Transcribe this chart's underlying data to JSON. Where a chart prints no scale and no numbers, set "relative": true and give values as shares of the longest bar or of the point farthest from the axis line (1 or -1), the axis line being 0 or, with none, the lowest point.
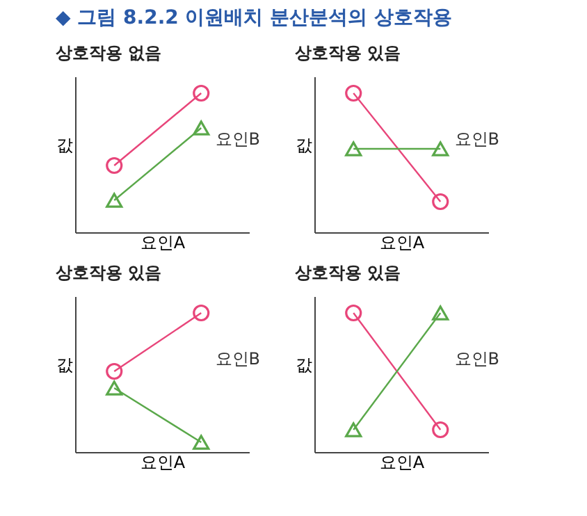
{
  "chart_data": [
    {
      "type": "line",
      "title": "상호작용 없음",
      "annotations": [
        "◆ 그림 8.2.2 이원배치 분산분석의 상호작용"
      ],
      "xlabel": "요인A",
      "ylabel": "값",
      "legend_title": "요인B",
      "relative": true,
      "categories": [
        null,
        null
      ],
      "line_style": "solid",
      "series": [
        {
          "color": "#e8457a",
          "marker": "circle",
          "values": [
            0.48,
            1.0
          ]
        },
        {
          "color": "#5aa84a",
          "marker": "triangle",
          "values": [
            0.23,
            0.75
          ]
        }
      ]
    },
    {
      "type": "line",
      "title": "상호작용 있음",
      "xlabel": "요인A",
      "ylabel": "값",
      "legend_title": "요인B",
      "relative": true,
      "categories": [
        null,
        null
      ],
      "line_style": "solid",
      "series": [
        {
          "color": "#e8457a",
          "marker": "circle",
          "values": [
            1.0,
            0.22
          ]
        },
        {
          "color": "#5aa84a",
          "marker": "triangle",
          "values": [
            0.6,
            0.6
          ]
        }
      ]
    },
    {
      "type": "line",
      "title": "상호작용 있음",
      "xlabel": "요인A",
      "ylabel": "값",
      "legend_title": "요인B",
      "relative": true,
      "categories": [
        null,
        null
      ],
      "line_style": "solid",
      "series": [
        {
          "color": "#e8457a",
          "marker": "circle",
          "values": [
            0.58,
            1.0
          ]
        },
        {
          "color": "#5aa84a",
          "marker": "triangle",
          "values": [
            0.46,
            0.07
          ]
        }
      ]
    },
    {
      "type": "line",
      "title": "상호작용 있음",
      "xlabel": "요인A",
      "ylabel": "값",
      "legend_title": "요인B",
      "relative": true,
      "categories": [
        null,
        null
      ],
      "line_style": "solid",
      "series": [
        {
          "color": "#e8457a",
          "marker": "circle",
          "values": [
            1.0,
            0.16
          ]
        },
        {
          "color": "#5aa84a",
          "marker": "triangle",
          "values": [
            0.16,
            1.0
          ]
        }
      ]
    }
  ]
}
